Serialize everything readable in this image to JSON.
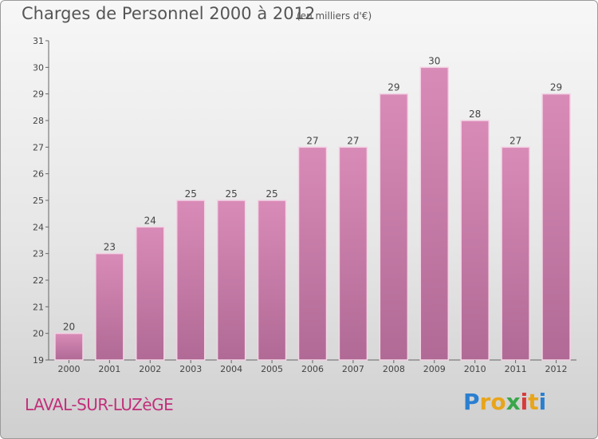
{
  "header": {
    "title": "Charges de Personnel 2000 à 2012",
    "subtitle": "(en milliers d'€)"
  },
  "footer": {
    "commune": "LAVAL-SUR-LUZèGE",
    "logo_text": "Proxiti",
    "logo_colors": [
      "#2a7fd0",
      "#e8a51b",
      "#e8a51b",
      "#3aa64a",
      "#d83a3a",
      "#e8a51b",
      "#2a7fd0"
    ]
  },
  "chart_data": {
    "type": "bar",
    "title": "Charges de Personnel 2000 à 2012",
    "subtitle": "(en milliers d'€)",
    "categories": [
      "2000",
      "2001",
      "2002",
      "2003",
      "2004",
      "2005",
      "2006",
      "2007",
      "2008",
      "2009",
      "2010",
      "2011",
      "2012"
    ],
    "values": [
      20,
      23,
      24,
      25,
      25,
      25,
      27,
      27,
      29,
      30,
      28,
      27,
      29
    ],
    "ylim": [
      19,
      31
    ],
    "yticks": [
      19,
      20,
      21,
      22,
      23,
      24,
      25,
      26,
      27,
      28,
      29,
      30,
      31
    ],
    "grid": false,
    "bar_color": "#d98bb7",
    "bar_color_dark": "#b06a95"
  }
}
